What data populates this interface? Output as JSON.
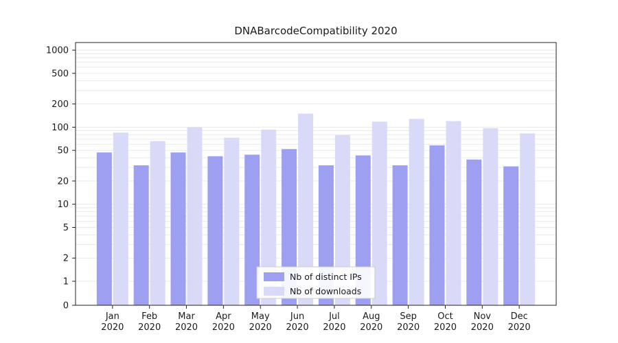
{
  "chart_data": {
    "type": "bar",
    "title": "DNABarcodeCompatibility 2020",
    "months": [
      "Jan",
      "Feb",
      "Mar",
      "Apr",
      "May",
      "Jun",
      "Jul",
      "Aug",
      "Sep",
      "Oct",
      "Nov",
      "Dec"
    ],
    "year": "2020",
    "yticks": [
      0,
      1,
      2,
      5,
      10,
      20,
      50,
      100,
      200,
      500,
      1000
    ],
    "ylim": [
      0,
      1000
    ],
    "yscale": "symlog",
    "grid": true,
    "legend_position": "inside-bottom-center",
    "series": [
      {
        "name": "Nb of distinct IPs",
        "color": "#9d9ff0",
        "values": [
          47,
          32,
          47,
          42,
          44,
          52,
          32,
          43,
          32,
          58,
          38,
          31
        ]
      },
      {
        "name": "Nb of downloads",
        "color": "#d9daf8",
        "values": [
          85,
          66,
          100,
          73,
          93,
          150,
          79,
          118,
          128,
          120,
          97,
          83
        ]
      }
    ],
    "colors": {
      "grid": "#e9e9e9",
      "axis": "#222222",
      "tick_label": "#1a1a1a",
      "legend_border": "#cccccc",
      "legend_bg": "#ffffff"
    }
  }
}
